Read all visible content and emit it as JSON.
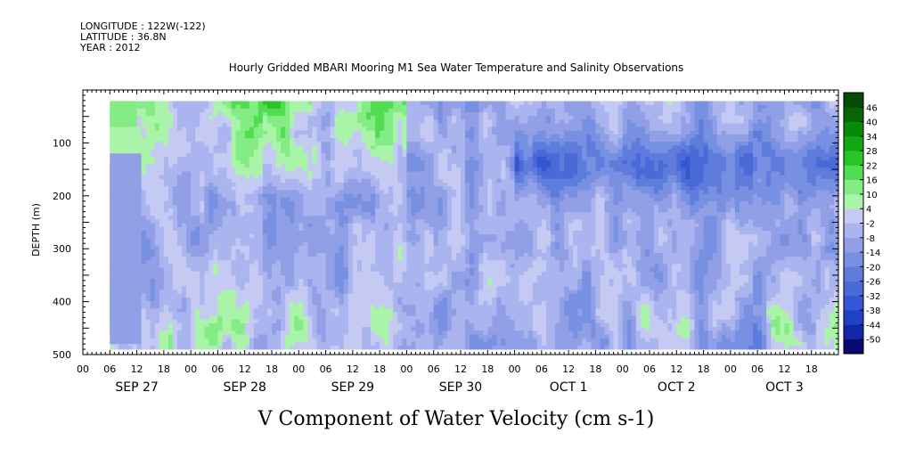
{
  "header": {
    "longitude": "LONGITUDE : 122W(-122)",
    "latitude": "LATITUDE : 36.8N",
    "year": "YEAR : 2012"
  },
  "chart_data": {
    "type": "heatmap",
    "title": "Hourly Gridded MBARI Mooring M1 Sea Water Temperature and Salinity Observations",
    "xlabel": "V Component of Water Velocity (cm s-1)",
    "ylabel": "DEPTH (m)",
    "ylim": [
      500,
      0
    ],
    "y_ticks": [
      100,
      200,
      300,
      400,
      500
    ],
    "x_range_hours": [
      0,
      168
    ],
    "x_hour_ticks": [
      "00",
      "06",
      "12",
      "18",
      "00",
      "06",
      "12",
      "18",
      "00",
      "06",
      "12",
      "18",
      "00",
      "06",
      "12",
      "18",
      "00",
      "06",
      "12",
      "18",
      "00",
      "06",
      "12",
      "18",
      "00",
      "06",
      "12",
      "18"
    ],
    "x_day_labels": [
      "SEP 27",
      "SEP 28",
      "SEP 29",
      "SEP 30",
      "OCT  1",
      "OCT  2",
      "OCT  3"
    ],
    "colorbar": {
      "levels": [
        -50,
        -44,
        -38,
        -32,
        -26,
        -20,
        -14,
        -8,
        -2,
        4,
        10,
        16,
        22,
        28,
        34,
        40,
        46
      ],
      "colors": [
        "#0a0a6e",
        "#1426a8",
        "#2040c8",
        "#3256d4",
        "#4a6ad8",
        "#5f7cdc",
        "#7890e2",
        "#909fe6",
        "#aab4ee",
        "#c4caf2",
        "#aaf4aa",
        "#84ec84",
        "#52dc52",
        "#28c428",
        "#14a614",
        "#0a880a",
        "#066606",
        "#044a04"
      ]
    },
    "data_note": "Field depicted as filled contours of northward velocity vs time and depth; values approximated.",
    "grid": false
  }
}
